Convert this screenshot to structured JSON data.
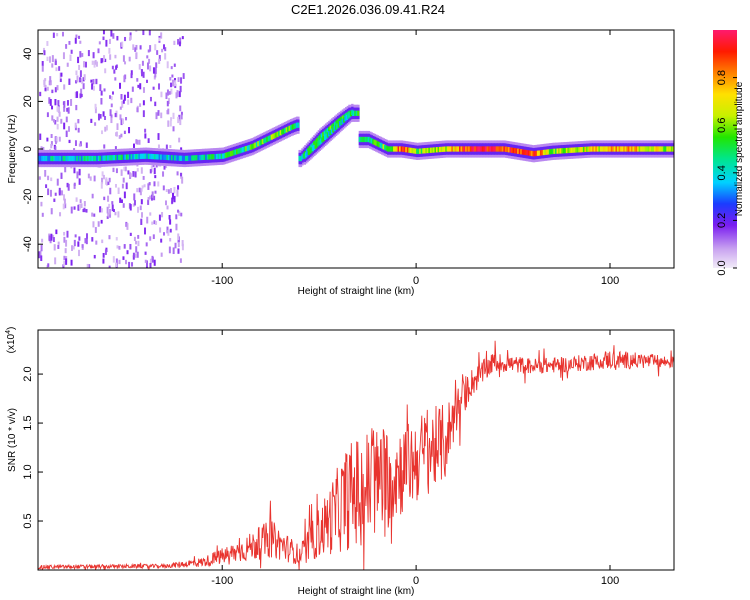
{
  "title": "C2E1.2026.036.09.41.R24",
  "chart_data": [
    {
      "type": "heatmap",
      "name": "spectrogram",
      "xlabel": "Height of straight line (km)",
      "ylabel": "Frequency (Hz)",
      "xlim": [
        -195,
        133
      ],
      "ylim": [
        -50,
        50
      ],
      "xticks": [
        -100,
        0,
        100
      ],
      "xtick_labels": [
        "-100",
        "0",
        "100"
      ],
      "yticks": [
        40,
        20,
        0,
        -20,
        -40
      ],
      "ytick_labels": [
        "40",
        "20",
        "0",
        "-20",
        "-40"
      ],
      "grid": false,
      "ridge": [
        {
          "x": -195,
          "f": -4,
          "a": 0.35
        },
        {
          "x": -165,
          "f": -4,
          "a": 0.4
        },
        {
          "x": -140,
          "f": -3,
          "a": 0.4
        },
        {
          "x": -120,
          "f": -4,
          "a": 0.35
        },
        {
          "x": -100,
          "f": -3,
          "a": 0.45
        },
        {
          "x": -85,
          "f": 1,
          "a": 0.5
        },
        {
          "x": -75,
          "f": 5,
          "a": 0.55
        },
        {
          "x": -65,
          "f": 9,
          "a": 0.5
        },
        {
          "x": -62,
          "f": 10,
          "a": 0.45
        },
        {
          "x": -60,
          "f": -4,
          "a": 0.4
        },
        {
          "x": -50,
          "f": 5,
          "a": 0.5
        },
        {
          "x": -40,
          "f": 12,
          "a": 0.5
        },
        {
          "x": -35,
          "f": 15,
          "a": 0.45
        },
        {
          "x": -25,
          "f": 4,
          "a": 0.5
        },
        {
          "x": -15,
          "f": 0,
          "a": 0.55
        },
        {
          "x": -8,
          "f": 0,
          "a": 0.9
        },
        {
          "x": 0,
          "f": -1,
          "a": 0.6
        },
        {
          "x": 15,
          "f": 0,
          "a": 0.7
        },
        {
          "x": 30,
          "f": 0,
          "a": 0.95
        },
        {
          "x": 45,
          "f": 0,
          "a": 0.85
        },
        {
          "x": 60,
          "f": -2,
          "a": 0.9
        },
        {
          "x": 70,
          "f": -1,
          "a": 0.6
        },
        {
          "x": 90,
          "f": 0,
          "a": 0.7
        },
        {
          "x": 110,
          "f": 0,
          "a": 0.75
        },
        {
          "x": 133,
          "f": 0,
          "a": 0.6
        }
      ],
      "noise_region": [
        -195,
        -120
      ]
    },
    {
      "type": "line",
      "name": "snr",
      "xlabel": "Height of straight line (km)",
      "ylabel": "SNR (10 * v/v)",
      "scale_label": "(x10",
      "scale_exponent": "4",
      "scale_close": ")",
      "xlim": [
        -195,
        133
      ],
      "ylim": [
        0,
        2.45
      ],
      "xticks": [
        -100,
        0,
        100
      ],
      "xtick_labels": [
        "-100",
        "0",
        "100"
      ],
      "yticks": [
        0.5,
        1.0,
        1.5,
        2.0
      ],
      "ytick_labels": [
        "0.5",
        "1.0",
        "1.5",
        "2.0"
      ],
      "series": [
        {
          "name": "SNR",
          "color": "#e8332e",
          "envelope": [
            {
              "x": -195,
              "y": 0.03,
              "amp": 0.02
            },
            {
              "x": -130,
              "y": 0.04,
              "amp": 0.02
            },
            {
              "x": -110,
              "y": 0.08,
              "amp": 0.05
            },
            {
              "x": -90,
              "y": 0.2,
              "amp": 0.12
            },
            {
              "x": -75,
              "y": 0.32,
              "amp": 0.2
            },
            {
              "x": -60,
              "y": 0.15,
              "amp": 0.1
            },
            {
              "x": -45,
              "y": 0.5,
              "amp": 0.35
            },
            {
              "x": -35,
              "y": 0.75,
              "amp": 0.55
            },
            {
              "x": -25,
              "y": 0.85,
              "amp": 0.6
            },
            {
              "x": -15,
              "y": 0.95,
              "amp": 0.55
            },
            {
              "x": -5,
              "y": 1.05,
              "amp": 0.45
            },
            {
              "x": 5,
              "y": 1.2,
              "amp": 0.45
            },
            {
              "x": 15,
              "y": 1.3,
              "amp": 0.4
            },
            {
              "x": 20,
              "y": 1.6,
              "amp": 0.25
            },
            {
              "x": 28,
              "y": 1.9,
              "amp": 0.15
            },
            {
              "x": 40,
              "y": 2.12,
              "amp": 0.1
            },
            {
              "x": 60,
              "y": 2.08,
              "amp": 0.08
            },
            {
              "x": 80,
              "y": 2.1,
              "amp": 0.08
            },
            {
              "x": 100,
              "y": 2.15,
              "amp": 0.1
            },
            {
              "x": 133,
              "y": 2.12,
              "amp": 0.06
            }
          ]
        }
      ]
    },
    {
      "type": "colorbar",
      "name": "amplitude-colorbar",
      "label": "Normalized spectral amplitude",
      "range": [
        0,
        1
      ],
      "ticks": [
        0.0,
        0.2,
        0.4,
        0.6,
        0.8
      ],
      "tick_labels": [
        "0.0",
        "0.2",
        "0.4",
        "0.6",
        "0.8"
      ],
      "stops": [
        {
          "v": 0.0,
          "color": "#f2ecf8"
        },
        {
          "v": 0.08,
          "color": "#c9a3f0"
        },
        {
          "v": 0.18,
          "color": "#7a1df0"
        },
        {
          "v": 0.27,
          "color": "#1a3cff"
        },
        {
          "v": 0.36,
          "color": "#00d2ff"
        },
        {
          "v": 0.46,
          "color": "#00e68a"
        },
        {
          "v": 0.55,
          "color": "#22e600"
        },
        {
          "v": 0.64,
          "color": "#c8f000"
        },
        {
          "v": 0.73,
          "color": "#ffe000"
        },
        {
          "v": 0.82,
          "color": "#ff8000"
        },
        {
          "v": 0.91,
          "color": "#ff1a00"
        },
        {
          "v": 1.0,
          "color": "#ff1a6e"
        }
      ]
    }
  ]
}
